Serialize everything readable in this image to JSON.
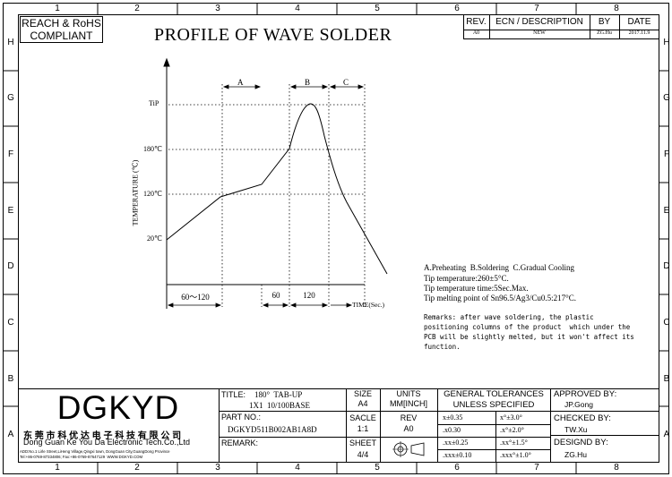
{
  "border": {
    "columns": [
      "1",
      "2",
      "3",
      "4",
      "5",
      "6",
      "7",
      "8"
    ],
    "rows": [
      "H",
      "G",
      "F",
      "E",
      "D",
      "C",
      "B",
      "A"
    ]
  },
  "reach_label": {
    "line1": "REACH & RoHS",
    "line2": "COMPLIANT"
  },
  "title": "PROFILE OF WAVE SOLDER",
  "revision_table": {
    "headers": {
      "rev": "REV.",
      "ecn": "ECN / DESCRIPTION",
      "by": "BY",
      "date": "DATE"
    },
    "row": {
      "rev": "A0",
      "ecn": "NEW",
      "by": "ZG.Hu",
      "date": "2017.11.9"
    }
  },
  "chart_data": {
    "type": "line",
    "title": "",
    "xlabel": "TIME(Sec.)",
    "ylabel": "TEMPERATURE (℃)",
    "y_ticks": [
      "TiP",
      "180℃",
      "120℃",
      "20℃"
    ],
    "zone_labels": [
      "A",
      "B",
      "C"
    ],
    "x_segments": [
      "60～120",
      "60",
      "120"
    ],
    "profile_points": [
      {
        "phase": "start",
        "temp_c": 20
      },
      {
        "phase": "preheat-1",
        "temp_c": 120
      },
      {
        "phase": "preheat-end",
        "temp_c": 135
      },
      {
        "phase": "solder-start",
        "temp_c": 180
      },
      {
        "phase": "peak",
        "temp": "TiP"
      },
      {
        "phase": "cooling",
        "temp_c": 120
      },
      {
        "phase": "end",
        "temp_c": 0
      }
    ]
  },
  "notes": [
    "A.Preheating  B.Soldering  C.Gradual Cooling",
    "Tip temperature:260±5°C.",
    "Tip temperature time:5Sec.Max.",
    "Tip melting point of Sn96.5/Ag3/Cu0.5:217°C."
  ],
  "remarks": [
    "Remarks: after wave soldering, the plastic",
    "positioning columns of the product  which under the",
    "PCB will be slightly melted, but it won't affect its",
    "function."
  ],
  "company": {
    "logo": "DGKYD",
    "name_cn": "东 莞 市 科 优 达 电 子 科 技 有 限 公 司",
    "name_en": "Dong Guan Ke You Da Electronic Tech.Co.,Ltd",
    "address": "ADD:No.1 Lirle Street,LiHeng Village,Qingxi town, DongGuan City,GuangDong Province",
    "contact": "Tel:+86-0769-87334806; Fax:+86-0769-87647129  WWW.DGKYD.COM"
  },
  "title_block": {
    "title_label": "TITLE:",
    "title_value1": "180°  TAB-UP",
    "title_value2": "1X1  10/100BASE",
    "part_label": "PART NO.:",
    "part_value": "DGKYD511B002AB1A8D",
    "remark_label": "REMARK:",
    "size_label": "SIZE",
    "size_value": "A4",
    "units_label": "UNITS",
    "units_value": "MM[INCH]",
    "scale_label": "SACLE",
    "scale_value": "1:1",
    "rev_label": "REV",
    "rev_value": "A0",
    "sheet_label": "SHEET",
    "sheet_value": "4/4"
  },
  "tolerances": {
    "header1": "GENERAL TOLERANCES",
    "header2": "UNLESS SPECIFIED",
    "rows": [
      [
        "x±0.35",
        "x°±3.0°"
      ],
      [
        ".x0.30",
        ".x°±2.0°"
      ],
      [
        ".xx±0.25",
        ".xx°±1.5°"
      ],
      [
        ".xxx±0.10",
        ".xxx°±1.0°"
      ]
    ]
  },
  "approvals": {
    "approved_label": "APPROVED BY:",
    "approved_value": "JP.Gong",
    "checked_label": "CHECKED BY:",
    "checked_value": "TW.Xu",
    "designed_label": "DESIGND BY:",
    "designed_value": "ZG.Hu"
  }
}
